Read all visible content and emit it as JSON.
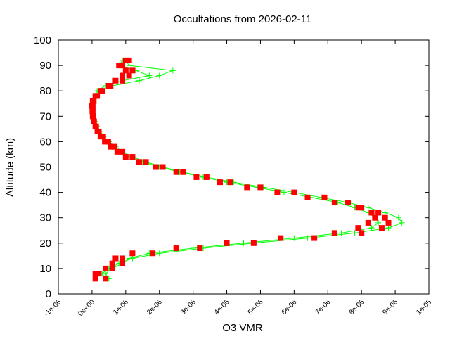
{
  "chart_data": {
    "type": "line",
    "title": "Occultations from 2026-02-11",
    "xlabel": "O3 VMR",
    "ylabel": "Altitude (km)",
    "xlim": [
      -1e-06,
      1e-05
    ],
    "ylim": [
      0,
      100
    ],
    "grid": false,
    "legend": "none",
    "x_tick_labels": [
      "-1e-06",
      "0e+00",
      "1e-06",
      "2e-06",
      "3e-06",
      "4e-06",
      "5e-06",
      "6e-06",
      "7e-06",
      "8e-06",
      "9e-06",
      "1e-05"
    ],
    "y_tick_labels": [
      "0",
      "10",
      "20",
      "30",
      "40",
      "50",
      "60",
      "70",
      "80",
      "90",
      "100"
    ],
    "altitude": [
      6,
      8,
      10,
      12,
      14,
      16,
      18,
      20,
      22,
      24,
      26,
      28,
      30,
      32,
      34,
      36,
      38,
      40,
      42,
      44,
      46,
      48,
      50,
      52,
      54,
      56,
      58,
      60,
      62,
      64,
      66,
      68,
      70,
      72,
      74,
      76,
      78,
      80,
      82,
      84,
      86,
      88,
      90,
      92
    ],
    "series": [
      {
        "style": "linespoints",
        "marker": "plus",
        "color": "#00ff00",
        "values": [
          4e-07,
          3e-07,
          5e-07,
          8e-07,
          1.2e-06,
          2e-06,
          3.3e-06,
          4.8e-06,
          6.4e-06,
          7.8e-06,
          8.8e-06,
          9.2e-06,
          9.1e-06,
          8.7e-06,
          8.2e-06,
          7.6e-06,
          6.8e-06,
          6e-06,
          5.1e-06,
          4.2e-06,
          3.4e-06,
          2.7e-06,
          2.1e-06,
          1.6e-06,
          1.2e-06,
          9e-07,
          7e-07,
          5e-07,
          3.5e-07,
          2.5e-07,
          1.5e-07,
          8e-08,
          4e-08,
          2e-08,
          2e-08,
          4e-08,
          1e-07,
          3e-07,
          6e-07,
          1.4e-06,
          2e-06,
          2.4e-06,
          1.1e-06,
          1e-06
        ]
      },
      {
        "style": "linespoints",
        "marker": "plus",
        "color": "#00ff00",
        "values": [
          5e-07,
          4e-07,
          6e-07,
          9e-07,
          1.1e-06,
          1.7e-06,
          3e-06,
          4.5e-06,
          6e-06,
          7.4e-06,
          8.3e-06,
          8.5e-06,
          8.4e-06,
          8.2e-06,
          7.8e-06,
          7.3e-06,
          6.5e-06,
          5.7e-06,
          4.9e-06,
          4e-06,
          3.3e-06,
          2.6e-06,
          2e-06,
          1.5e-06,
          1.1e-06,
          8.5e-07,
          6.2e-07,
          4.5e-07,
          3.2e-07,
          2.2e-07,
          1.4e-07,
          7e-08,
          3e-08,
          1e-08,
          1e-08,
          2e-08,
          5e-08,
          1.5e-07,
          4e-07,
          9e-07,
          1.7e-06,
          1.3e-06,
          8e-07,
          9e-07
        ]
      },
      {
        "style": "points",
        "marker": "square",
        "color": "#ff0000",
        "values": [
          1e-07,
          2e-07,
          4e-07,
          6e-07,
          9e-07,
          1.8e-06,
          3.2e-06,
          4.8e-06,
          6.6e-06,
          8e-06,
          8.6e-06,
          8.8e-06,
          8.7e-06,
          8.3e-06,
          7.9e-06,
          7.2e-06,
          6.4e-06,
          5.5e-06,
          4.6e-06,
          3.8e-06,
          3.1e-06,
          2.5e-06,
          1.9e-06,
          1.4e-06,
          1e-06,
          7.5e-07,
          5.5e-07,
          3.8e-07,
          2.5e-07,
          1.6e-07,
          1e-07,
          5e-08,
          2e-08,
          1e-08,
          0.0,
          2e-08,
          1e-07,
          2.5e-07,
          5e-07,
          7e-07,
          9e-07,
          1e-06,
          9e-07,
          1e-06
        ]
      },
      {
        "style": "points",
        "marker": "square",
        "color": "#ff0000",
        "values": [
          4e-07,
          1e-07,
          6e-07,
          9e-07,
          7e-07,
          1.2e-06,
          2.5e-06,
          4e-06,
          5.6e-06,
          7.2e-06,
          7.9e-06,
          8.2e-06,
          8.4e-06,
          8.5e-06,
          8e-06,
          7.6e-06,
          6.9e-06,
          6e-06,
          5e-06,
          4.1e-06,
          3.4e-06,
          2.7e-06,
          2.1e-06,
          1.6e-06,
          1.2e-06,
          9e-07,
          6.5e-07,
          4.8e-07,
          3.3e-07,
          2e-07,
          1.2e-07,
          6e-08,
          3e-08,
          2e-08,
          2e-08,
          5e-08,
          1.5e-07,
          3e-07,
          5.5e-07,
          9e-07,
          1.1e-06,
          1.2e-06,
          8e-07,
          1.1e-06
        ]
      }
    ]
  }
}
